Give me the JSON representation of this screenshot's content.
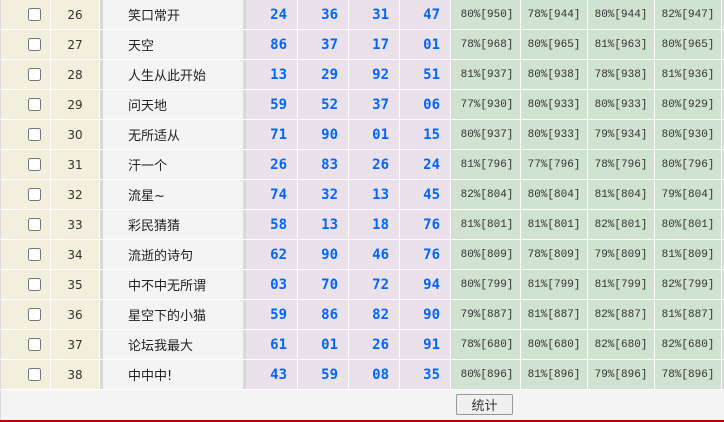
{
  "rows": [
    {
      "id": "26",
      "name": "笑口常开",
      "nums": [
        "24",
        "36",
        "31",
        "47"
      ],
      "pcts": [
        "80%[950]",
        "78%[944]",
        "80%[944]",
        "82%[947]"
      ]
    },
    {
      "id": "27",
      "name": "天空",
      "nums": [
        "86",
        "37",
        "17",
        "01"
      ],
      "pcts": [
        "78%[968]",
        "80%[965]",
        "81%[963]",
        "80%[965]"
      ]
    },
    {
      "id": "28",
      "name": "人生从此开始",
      "nums": [
        "13",
        "29",
        "92",
        "51"
      ],
      "pcts": [
        "81%[937]",
        "80%[938]",
        "78%[938]",
        "81%[936]"
      ]
    },
    {
      "id": "29",
      "name": "问天地",
      "nums": [
        "59",
        "52",
        "37",
        "06"
      ],
      "pcts": [
        "77%[930]",
        "80%[933]",
        "80%[933]",
        "80%[929]"
      ]
    },
    {
      "id": "30",
      "name": "无所适从",
      "nums": [
        "71",
        "90",
        "01",
        "15"
      ],
      "pcts": [
        "80%[937]",
        "80%[933]",
        "79%[934]",
        "80%[930]"
      ]
    },
    {
      "id": "31",
      "name": "汗一个",
      "nums": [
        "26",
        "83",
        "26",
        "24"
      ],
      "pcts": [
        "81%[796]",
        "77%[796]",
        "78%[796]",
        "80%[796]"
      ]
    },
    {
      "id": "32",
      "name": "流星~",
      "nums": [
        "74",
        "32",
        "13",
        "45"
      ],
      "pcts": [
        "82%[804]",
        "80%[804]",
        "81%[804]",
        "79%[804]"
      ]
    },
    {
      "id": "33",
      "name": "彩民猜猜",
      "nums": [
        "58",
        "13",
        "18",
        "76"
      ],
      "pcts": [
        "81%[801]",
        "81%[801]",
        "82%[801]",
        "80%[801]"
      ]
    },
    {
      "id": "34",
      "name": "流逝的诗句",
      "nums": [
        "62",
        "90",
        "46",
        "76"
      ],
      "pcts": [
        "80%[809]",
        "78%[809]",
        "79%[809]",
        "81%[809]"
      ]
    },
    {
      "id": "35",
      "name": "中不中无所谓",
      "nums": [
        "03",
        "70",
        "72",
        "94"
      ],
      "pcts": [
        "80%[799]",
        "81%[799]",
        "81%[799]",
        "82%[799]"
      ]
    },
    {
      "id": "36",
      "name": "星空下的小猫",
      "nums": [
        "59",
        "86",
        "82",
        "90"
      ],
      "pcts": [
        "79%[887]",
        "81%[887]",
        "82%[887]",
        "81%[887]"
      ]
    },
    {
      "id": "37",
      "name": "论坛我最大",
      "nums": [
        "61",
        "01",
        "26",
        "91"
      ],
      "pcts": [
        "78%[680]",
        "80%[680]",
        "82%[680]",
        "82%[680]"
      ]
    },
    {
      "id": "38",
      "name": "中中中!",
      "nums": [
        "43",
        "59",
        "08",
        "35"
      ],
      "pcts": [
        "80%[896]",
        "81%[896]",
        "79%[896]",
        "78%[896]"
      ]
    }
  ],
  "footer": {
    "stats_button": "统计"
  },
  "colors": {
    "number_text": "#0066ff",
    "number_bg": "#ebe1ea",
    "percent_bg": "#d0e2d0",
    "id_bg": "#f2f0dc",
    "bottom_line": "#b00000"
  }
}
